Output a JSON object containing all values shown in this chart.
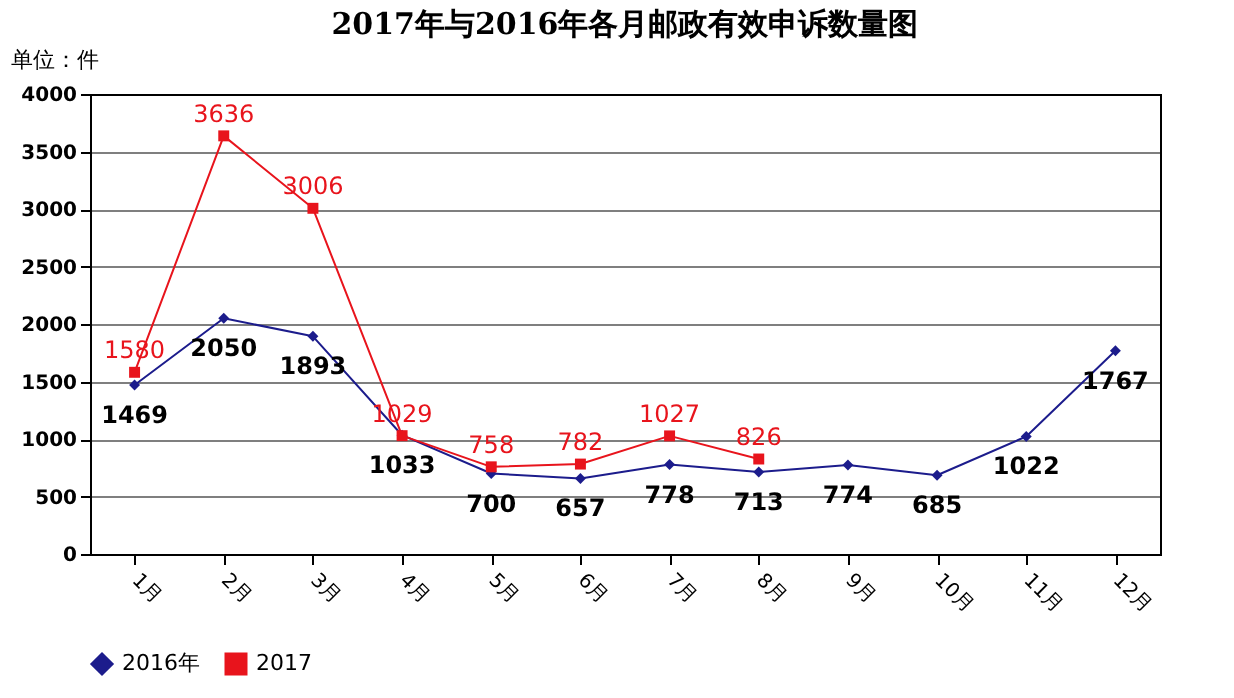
{
  "chart_data": {
    "type": "line",
    "title": "2017年与2016年各月邮政有效申诉数量图",
    "ylabel": "单位：件",
    "categories": [
      "1月",
      "2月",
      "3月",
      "4月",
      "5月",
      "6月",
      "7月",
      "8月",
      "9月",
      "10月",
      "11月",
      "12月"
    ],
    "series": [
      {
        "name": "2016年",
        "color": "#1c1c8c",
        "marker": "diamond",
        "values": [
          1469,
          2050,
          1893,
          1033,
          700,
          657,
          778,
          713,
          774,
          685,
          1022,
          1767
        ]
      },
      {
        "name": "2017",
        "color": "#e8141c",
        "marker": "square",
        "values": [
          1580,
          3636,
          3006,
          1029,
          758,
          782,
          1027,
          826,
          null,
          null,
          null,
          null
        ]
      }
    ],
    "ylim": [
      0,
      4000
    ],
    "yticks": [
      0,
      500,
      1000,
      1500,
      2000,
      2500,
      3000,
      3500,
      4000
    ],
    "grid": "y",
    "legend": "bottom",
    "data_labels": true,
    "line_style": "solid"
  }
}
